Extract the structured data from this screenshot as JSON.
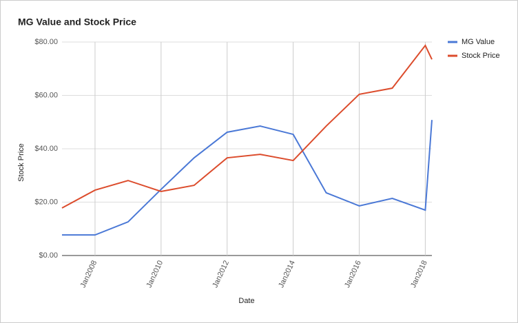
{
  "chart_data": {
    "type": "line",
    "title": "MG Value and Stock Price",
    "x_label": "Date",
    "y_label": "Stock Price",
    "x": [
      2007,
      2008,
      2009,
      2010,
      2011,
      2012,
      2013,
      2014,
      2015,
      2016,
      2017,
      2018,
      2018.2
    ],
    "series": [
      {
        "name": "MG Value",
        "color": "#4a78d6",
        "values": [
          7.7,
          7.7,
          12.6,
          24.8,
          36.6,
          46.2,
          48.5,
          45.4,
          23.5,
          18.6,
          21.4,
          17.0,
          50.8
        ]
      },
      {
        "name": "Stock Price",
        "color": "#dc4c2c",
        "values": [
          17.8,
          24.5,
          28.1,
          24.0,
          26.3,
          36.6,
          37.9,
          35.6,
          48.5,
          60.4,
          62.7,
          78.7,
          73.5
        ]
      }
    ],
    "xlim": [
      2007,
      2018.2
    ],
    "xticks": [
      {
        "value": 2008,
        "label": "Jan2008"
      },
      {
        "value": 2010,
        "label": "Jan2010"
      },
      {
        "value": 2012,
        "label": "Jan2012"
      },
      {
        "value": 2014,
        "label": "Jan2014"
      },
      {
        "value": 2016,
        "label": "Jan2016"
      },
      {
        "value": 2018,
        "label": "Jan2018"
      }
    ],
    "ylim": [
      0,
      80
    ],
    "yticks": [
      {
        "value": 0,
        "label": "$0.00"
      },
      {
        "value": 20,
        "label": "$20.00"
      },
      {
        "value": 40,
        "label": "$40.00"
      },
      {
        "value": 60,
        "label": "$60.00"
      },
      {
        "value": 80,
        "label": "$80.00"
      }
    ],
    "grid": true,
    "legend": "right"
  }
}
